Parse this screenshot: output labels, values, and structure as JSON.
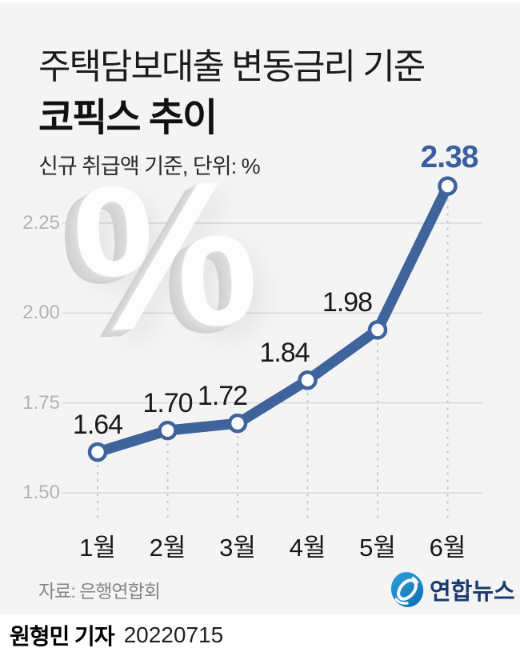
{
  "title": {
    "line1": "주택담보대출 변동금리 기준",
    "line2": "코픽스 추이"
  },
  "subtitle": "신규 취급액 기준, 단위: %",
  "decoration": {
    "symbol": "%"
  },
  "chart_data": {
    "type": "line",
    "categories": [
      "1월",
      "2월",
      "3월",
      "4월",
      "5월",
      "6월"
    ],
    "values": [
      1.64,
      1.7,
      1.72,
      1.84,
      1.98,
      2.38
    ],
    "value_labels": [
      "1.64",
      "1.70",
      "1.72",
      "1.84",
      "1.98",
      "2.38"
    ],
    "yticks": [
      2.25,
      2.0,
      1.75,
      1.5
    ],
    "ytick_labels": [
      "2.25",
      "2.00",
      "1.75",
      "1.50"
    ],
    "ylim": [
      1.45,
      2.45
    ],
    "title": "코픽스 추이",
    "xlabel": "",
    "ylabel": "%",
    "grid": "horizontal-gridlines",
    "legend": "none",
    "highlight_last": true,
    "line_color": "#3f649c",
    "point_fill": "#fcfcfc",
    "label_color": "#1a1a1a",
    "highlight_color": "#3a5f9c",
    "grid_color": "#d8d8d8",
    "dash_color": "#c6c6c6",
    "tick_text_color": "#b3b3b3"
  },
  "source": "자료: 은행연합회",
  "logo": {
    "name": "연합뉴스",
    "icon": "yonhap-swirl-icon",
    "icon_color": "#1e8fce",
    "text_color": "#1d3a70"
  },
  "byline": {
    "reporter": "원형민 기자",
    "date": "20220715"
  },
  "colors": {
    "panel_background": "#f4f4f4",
    "footer_background": "#ffffff"
  }
}
